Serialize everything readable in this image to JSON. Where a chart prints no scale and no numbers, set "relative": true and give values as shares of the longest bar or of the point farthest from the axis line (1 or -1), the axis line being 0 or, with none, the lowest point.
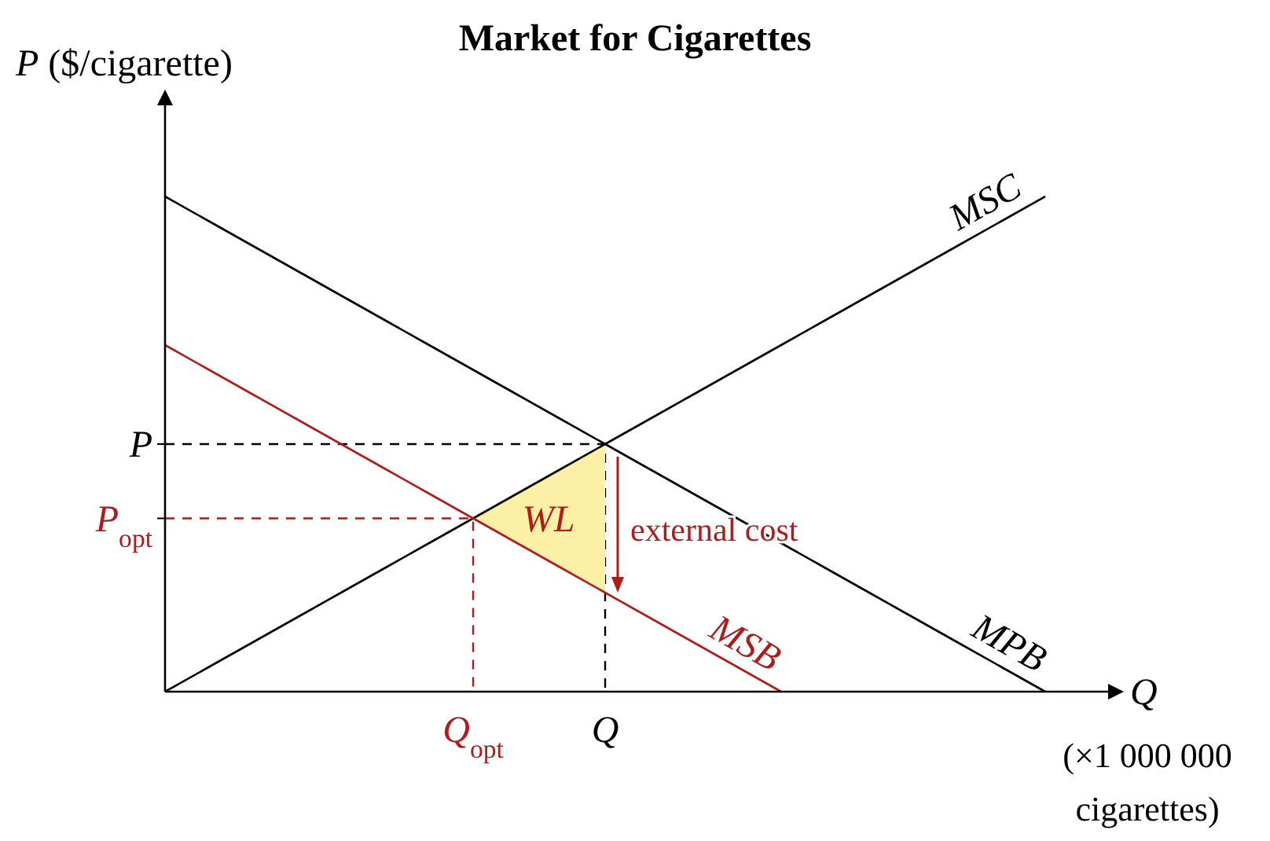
{
  "chart_data": {
    "type": "line",
    "title": "Market for Cigarettes",
    "xlabel": "Q (×1 000 000 cigarettes)",
    "ylabel": "P ($/cigarette)",
    "relative": true,
    "categories": [
      null,
      null,
      null,
      null,
      null,
      null,
      null,
      "Q$_{opt}$",
      null,
      null,
      "Q",
      null,
      null,
      null,
      null,
      null,
      null,
      null,
      null,
      null,
      null,
      null
    ],
    "series": [
      {
        "type": "area",
        "color": "#fbf0a6",
        "values": [
          null,
          null,
          null,
          null,
          null,
          null,
          null,
          0.35,
          0.4,
          0.45,
          0.5,
          null,
          null,
          null,
          null,
          null,
          null,
          null,
          null,
          null,
          null,
          null
        ]
      },
      {
        "name": "MSC",
        "color": "#000000",
        "values": [
          0,
          0.05,
          0.1,
          0.15,
          0.2,
          0.25,
          0.3,
          0.35,
          0.4,
          0.45,
          0.5,
          0.55,
          0.6,
          0.65,
          0.7,
          0.75,
          0.8,
          0.85,
          0.9,
          0.95,
          1,
          null
        ]
      },
      {
        "name": "MPB",
        "color": "#000000",
        "values": [
          1,
          0.95,
          0.9,
          0.85,
          0.8,
          0.75,
          0.7,
          0.65,
          0.6,
          0.55,
          0.5,
          0.45,
          0.4,
          0.35,
          0.3,
          0.25,
          0.2,
          0.15,
          0.1,
          0.05,
          0,
          null
        ]
      },
      {
        "name": "MSB",
        "color": "#b01c1c",
        "values": [
          0.7,
          0.65,
          0.6,
          0.55,
          0.5,
          0.45,
          0.4,
          0.35,
          0.3,
          0.25,
          0.2,
          0.15,
          0.1,
          0.05,
          0,
          null,
          null,
          null,
          null,
          null,
          null,
          null
        ]
      }
    ],
    "annotations": [
      "P",
      "P$_{opt}$",
      "WL",
      "external cost"
    ]
  }
}
